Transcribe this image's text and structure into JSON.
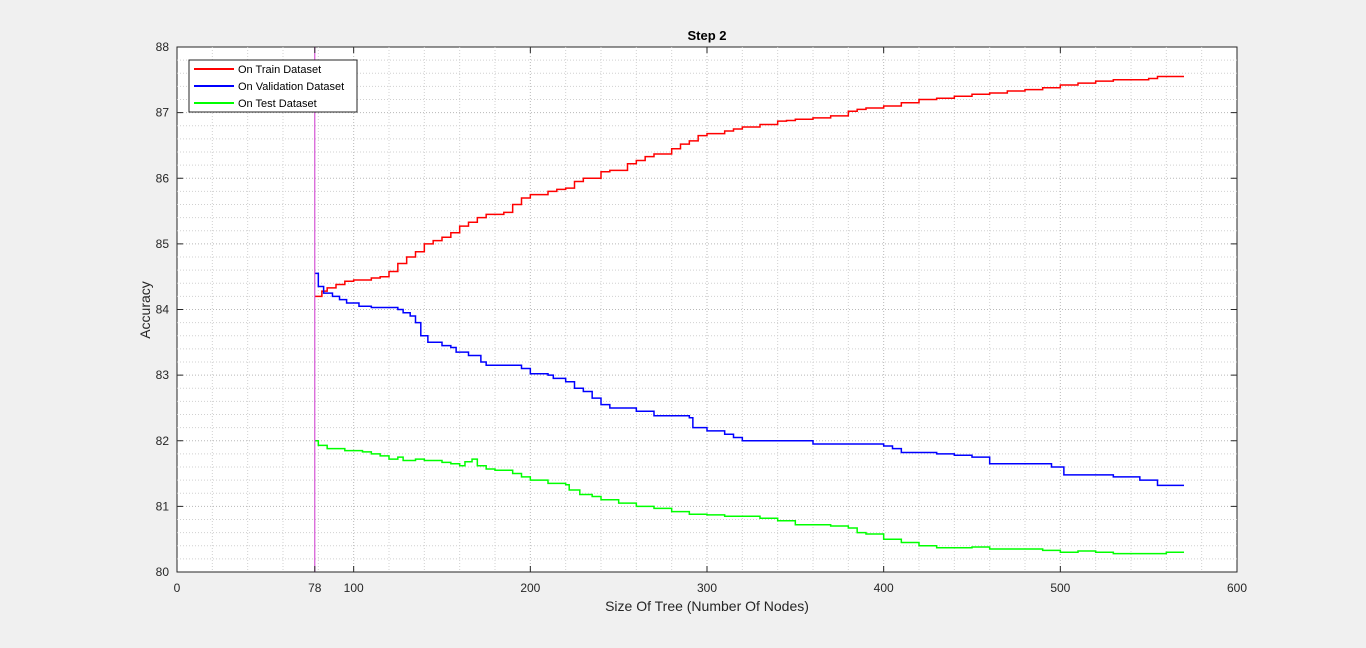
{
  "chart_data": {
    "type": "line",
    "title": "Step 2",
    "xlabel": "Size Of Tree (Number Of Nodes)",
    "ylabel": "Accuracy",
    "xlim": [
      0,
      600
    ],
    "ylim": [
      80,
      88
    ],
    "xticks": [
      0,
      78,
      100,
      200,
      300,
      400,
      500,
      600
    ],
    "yticks": [
      80,
      81,
      82,
      83,
      84,
      85,
      86,
      87,
      88
    ],
    "grid": "on (major and minor dotted)",
    "legend_position": "top-left",
    "marker_line": {
      "x": 78,
      "color": "#cc33cc"
    },
    "series": [
      {
        "name": "On Train Dataset",
        "color": "#ff0000",
        "points": [
          [
            78,
            84.2
          ],
          [
            82,
            84.28
          ],
          [
            85,
            84.33
          ],
          [
            90,
            84.38
          ],
          [
            95,
            84.43
          ],
          [
            100,
            84.45
          ],
          [
            110,
            84.48
          ],
          [
            115,
            84.5
          ],
          [
            120,
            84.58
          ],
          [
            125,
            84.7
          ],
          [
            130,
            84.8
          ],
          [
            135,
            84.88
          ],
          [
            140,
            85.0
          ],
          [
            145,
            85.05
          ],
          [
            150,
            85.1
          ],
          [
            155,
            85.17
          ],
          [
            160,
            85.27
          ],
          [
            165,
            85.33
          ],
          [
            170,
            85.4
          ],
          [
            175,
            85.45
          ],
          [
            185,
            85.48
          ],
          [
            190,
            85.6
          ],
          [
            195,
            85.7
          ],
          [
            200,
            85.75
          ],
          [
            210,
            85.8
          ],
          [
            215,
            85.83
          ],
          [
            220,
            85.85
          ],
          [
            225,
            85.95
          ],
          [
            230,
            86.0
          ],
          [
            240,
            86.1
          ],
          [
            245,
            86.12
          ],
          [
            255,
            86.22
          ],
          [
            260,
            86.27
          ],
          [
            265,
            86.33
          ],
          [
            270,
            86.37
          ],
          [
            280,
            86.45
          ],
          [
            285,
            86.52
          ],
          [
            290,
            86.57
          ],
          [
            295,
            86.65
          ],
          [
            300,
            86.68
          ],
          [
            310,
            86.72
          ],
          [
            315,
            86.75
          ],
          [
            320,
            86.78
          ],
          [
            330,
            86.82
          ],
          [
            340,
            86.87
          ],
          [
            345,
            86.88
          ],
          [
            350,
            86.9
          ],
          [
            360,
            86.92
          ],
          [
            370,
            86.95
          ],
          [
            380,
            87.02
          ],
          [
            385,
            87.05
          ],
          [
            390,
            87.07
          ],
          [
            400,
            87.1
          ],
          [
            410,
            87.15
          ],
          [
            420,
            87.2
          ],
          [
            430,
            87.22
          ],
          [
            440,
            87.25
          ],
          [
            450,
            87.28
          ],
          [
            460,
            87.3
          ],
          [
            470,
            87.33
          ],
          [
            480,
            87.35
          ],
          [
            490,
            87.38
          ],
          [
            500,
            87.42
          ],
          [
            510,
            87.45
          ],
          [
            520,
            87.48
          ],
          [
            530,
            87.5
          ],
          [
            540,
            87.5
          ],
          [
            550,
            87.52
          ],
          [
            555,
            87.55
          ],
          [
            570,
            87.55
          ]
        ]
      },
      {
        "name": "On Validation Dataset",
        "color": "#0000ff",
        "points": [
          [
            78,
            84.55
          ],
          [
            80,
            84.35
          ],
          [
            83,
            84.25
          ],
          [
            88,
            84.2
          ],
          [
            92,
            84.15
          ],
          [
            96,
            84.1
          ],
          [
            103,
            84.05
          ],
          [
            110,
            84.03
          ],
          [
            120,
            84.03
          ],
          [
            125,
            84.0
          ],
          [
            128,
            83.95
          ],
          [
            132,
            83.9
          ],
          [
            135,
            83.8
          ],
          [
            138,
            83.6
          ],
          [
            142,
            83.5
          ],
          [
            150,
            83.45
          ],
          [
            155,
            83.42
          ],
          [
            158,
            83.35
          ],
          [
            165,
            83.3
          ],
          [
            172,
            83.2
          ],
          [
            175,
            83.15
          ],
          [
            195,
            83.1
          ],
          [
            200,
            83.02
          ],
          [
            210,
            83.0
          ],
          [
            213,
            82.95
          ],
          [
            220,
            82.9
          ],
          [
            225,
            82.8
          ],
          [
            230,
            82.75
          ],
          [
            235,
            82.65
          ],
          [
            240,
            82.55
          ],
          [
            245,
            82.5
          ],
          [
            255,
            82.5
          ],
          [
            260,
            82.45
          ],
          [
            270,
            82.38
          ],
          [
            290,
            82.35
          ],
          [
            292,
            82.2
          ],
          [
            300,
            82.15
          ],
          [
            310,
            82.1
          ],
          [
            315,
            82.05
          ],
          [
            320,
            82.0
          ],
          [
            350,
            82.0
          ],
          [
            360,
            81.95
          ],
          [
            400,
            81.92
          ],
          [
            405,
            81.88
          ],
          [
            410,
            81.82
          ],
          [
            420,
            81.82
          ],
          [
            430,
            81.8
          ],
          [
            440,
            81.78
          ],
          [
            450,
            81.75
          ],
          [
            460,
            81.65
          ],
          [
            495,
            81.6
          ],
          [
            502,
            81.48
          ],
          [
            530,
            81.45
          ],
          [
            545,
            81.4
          ],
          [
            555,
            81.32
          ],
          [
            570,
            81.32
          ]
        ]
      },
      {
        "name": "On Test Dataset",
        "color": "#00ff00",
        "points": [
          [
            78,
            82.0
          ],
          [
            80,
            81.93
          ],
          [
            85,
            81.88
          ],
          [
            95,
            81.85
          ],
          [
            105,
            81.83
          ],
          [
            110,
            81.8
          ],
          [
            115,
            81.77
          ],
          [
            120,
            81.72
          ],
          [
            125,
            81.75
          ],
          [
            128,
            81.7
          ],
          [
            135,
            81.72
          ],
          [
            140,
            81.7
          ],
          [
            145,
            81.7
          ],
          [
            150,
            81.67
          ],
          [
            155,
            81.65
          ],
          [
            160,
            81.62
          ],
          [
            163,
            81.68
          ],
          [
            167,
            81.72
          ],
          [
            170,
            81.62
          ],
          [
            175,
            81.57
          ],
          [
            180,
            81.55
          ],
          [
            190,
            81.5
          ],
          [
            195,
            81.45
          ],
          [
            200,
            81.4
          ],
          [
            210,
            81.35
          ],
          [
            220,
            81.33
          ],
          [
            222,
            81.25
          ],
          [
            228,
            81.18
          ],
          [
            235,
            81.15
          ],
          [
            240,
            81.1
          ],
          [
            250,
            81.05
          ],
          [
            260,
            81.0
          ],
          [
            270,
            80.97
          ],
          [
            280,
            80.92
          ],
          [
            290,
            80.88
          ],
          [
            300,
            80.87
          ],
          [
            310,
            80.85
          ],
          [
            320,
            80.85
          ],
          [
            330,
            80.82
          ],
          [
            340,
            80.78
          ],
          [
            350,
            80.72
          ],
          [
            370,
            80.7
          ],
          [
            380,
            80.67
          ],
          [
            385,
            80.6
          ],
          [
            390,
            80.58
          ],
          [
            400,
            80.5
          ],
          [
            410,
            80.45
          ],
          [
            420,
            80.4
          ],
          [
            430,
            80.37
          ],
          [
            450,
            80.38
          ],
          [
            460,
            80.35
          ],
          [
            490,
            80.33
          ],
          [
            500,
            80.3
          ],
          [
            510,
            80.32
          ],
          [
            520,
            80.3
          ],
          [
            530,
            80.28
          ],
          [
            560,
            80.3
          ],
          [
            570,
            80.3
          ]
        ]
      }
    ]
  }
}
